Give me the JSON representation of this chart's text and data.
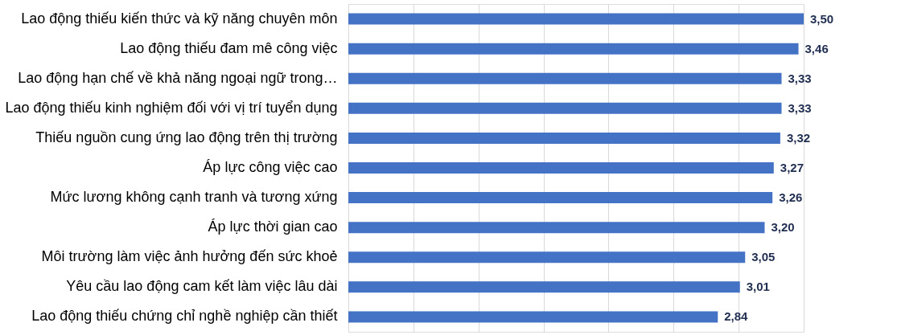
{
  "chart_data": {
    "type": "bar",
    "orientation": "horizontal",
    "categories": [
      "Lao động thiếu kiến thức và kỹ năng chuyên môn",
      "Lao động thiếu đam mê công việc",
      "Lao động hạn chế về khả năng ngoại ngữ trong…",
      "Lao động thiếu kinh nghiệm đối với vị trí tuyển dụng",
      "Thiếu nguồn cung ứng lao động trên thị trường",
      "Áp lực công việc cao ",
      "Mức lương không cạnh tranh và tương xứng",
      "Áp lực thời gian cao ",
      "Môi trường làm việc ảnh hưởng đến sức khoẻ ",
      "Yêu cầu lao động cam kết làm việc lâu dài",
      "Lao động thiếu chứng chỉ nghề nghiệp cần thiết"
    ],
    "values": [
      3.5,
      3.46,
      3.33,
      3.33,
      3.32,
      3.27,
      3.26,
      3.2,
      3.05,
      3.01,
      2.84
    ],
    "value_labels": [
      "3,50",
      "3,46",
      "3,33",
      "3,33",
      "3,32",
      "3,27",
      "3,26",
      "3,20",
      "3,05",
      "3,01",
      "2,84"
    ],
    "color": "#4472c4",
    "xlim": [
      0,
      3.5
    ],
    "xticks": [
      {
        "value": 0,
        "label": null
      },
      {
        "value": 0.5,
        "label": null
      },
      {
        "value": 1,
        "label": null
      },
      {
        "value": 1.5,
        "label": null
      },
      {
        "value": 2,
        "label": null
      },
      {
        "value": 2.5,
        "label": null
      },
      {
        "value": 3,
        "label": null
      },
      {
        "value": 3.5,
        "label": null
      }
    ],
    "grid": "x",
    "tick_labels": "y"
  }
}
